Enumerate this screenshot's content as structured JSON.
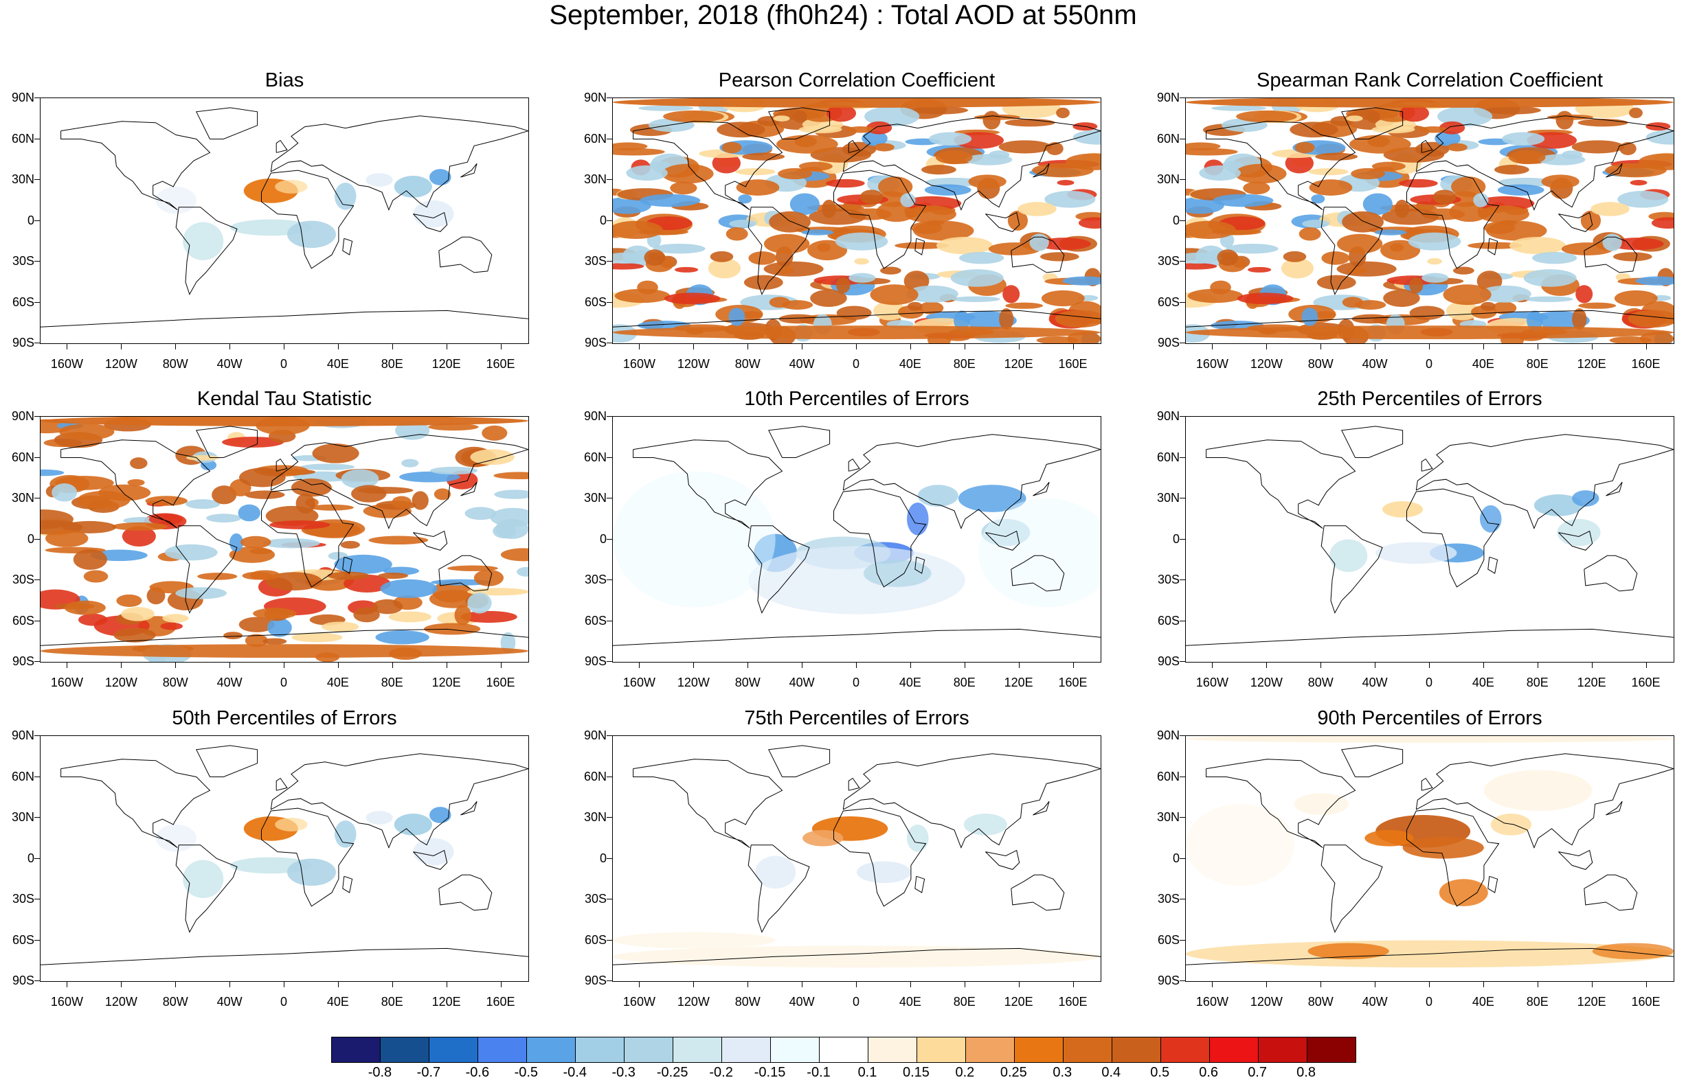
{
  "title": "September, 2018 (fh0h24) : Total AOD at 550nm",
  "lat_labels": [
    "90N",
    "60N",
    "30N",
    "0",
    "30S",
    "60S",
    "90S"
  ],
  "lon_labels": [
    "160W",
    "120W",
    "80W",
    "40W",
    "0",
    "40E",
    "80E",
    "120E",
    "160E"
  ],
  "panels": [
    {
      "title": "Bias",
      "pattern": "bias"
    },
    {
      "title": "Pearson Correlation Coefficient",
      "pattern": "corr"
    },
    {
      "title": "Spearman Rank Correlation Coefficient",
      "pattern": "corr"
    },
    {
      "title": "Kendal Tau Statistic",
      "pattern": "kendall"
    },
    {
      "title": "10th Percentiles of Errors",
      "pattern": "p10"
    },
    {
      "title": "25th Percentiles of Errors",
      "pattern": "p25"
    },
    {
      "title": "50th Percentiles of Errors",
      "pattern": "bias"
    },
    {
      "title": "75th Percentiles of Errors",
      "pattern": "p75"
    },
    {
      "title": "90th Percentiles of Errors",
      "pattern": "p90"
    }
  ],
  "colorbar": {
    "labels": [
      "-0.8",
      "-0.7",
      "-0.6",
      "-0.5",
      "-0.4",
      "-0.3",
      "-0.25",
      "-0.2",
      "-0.15",
      "-0.1",
      "0.1",
      "0.15",
      "0.2",
      "0.25",
      "0.3",
      "0.4",
      "0.5",
      "0.6",
      "0.7",
      "0.8"
    ],
    "colors": [
      "#1a1a6e",
      "#154f8f",
      "#1f6fc9",
      "#4a82f0",
      "#5aa3e6",
      "#a2cfe6",
      "#aed4e6",
      "#cfe9ee",
      "#e1ecf8",
      "#eefcff",
      "#ffffff",
      "#fef3e0",
      "#fddb9b",
      "#f2a462",
      "#e87713",
      "#d66a1c",
      "#c9601b",
      "#e0351c",
      "#ec1414",
      "#c8100e",
      "#8b0000"
    ]
  }
}
